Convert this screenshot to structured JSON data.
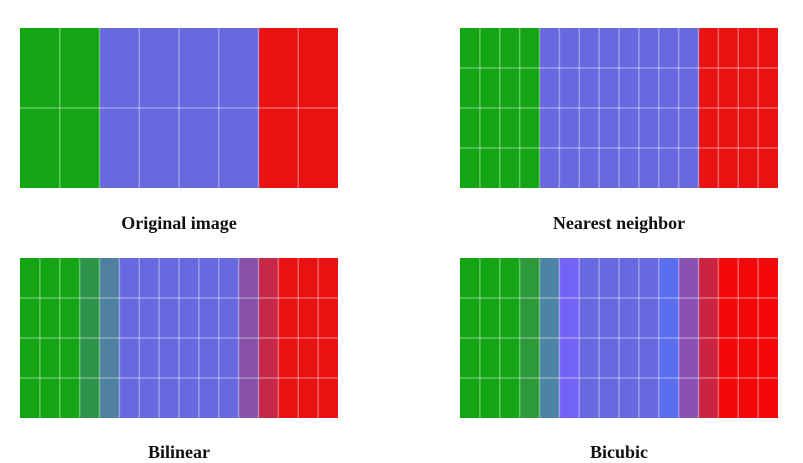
{
  "panels": [
    {
      "caption": "Original image",
      "columns": [
        {
          "color": "#14a514",
          "width": 2
        },
        {
          "color": "#6868e0",
          "width": 4
        },
        {
          "color": "#e81212",
          "width": 2
        }
      ],
      "grid_cols": 8,
      "grid_rows": 2
    },
    {
      "caption": "Nearest neighbor",
      "columns": [
        {
          "color": "#14a514",
          "width": 4
        },
        {
          "color": "#6868e0",
          "width": 8
        },
        {
          "color": "#e81212",
          "width": 4
        }
      ],
      "grid_cols": 16,
      "grid_rows": 4
    },
    {
      "caption": "Bilinear",
      "columns": [
        {
          "color": "#14a514",
          "width": 3
        },
        {
          "color": "#2e944a",
          "width": 1
        },
        {
          "color": "#4f80a0",
          "width": 1
        },
        {
          "color": "#6868e0",
          "width": 6
        },
        {
          "color": "#8850a8",
          "width": 1
        },
        {
          "color": "#c82848",
          "width": 1
        },
        {
          "color": "#e81212",
          "width": 3
        }
      ],
      "grid_cols": 16,
      "grid_rows": 4
    },
    {
      "caption": "Bicubic",
      "columns": [
        {
          "color": "#14a514",
          "width": 3
        },
        {
          "color": "#2d9a3a",
          "width": 1
        },
        {
          "color": "#4d84a6",
          "width": 1
        },
        {
          "color": "#7464f6",
          "width": 1
        },
        {
          "color": "#6868e0",
          "width": 4
        },
        {
          "color": "#5a6eee",
          "width": 1
        },
        {
          "color": "#8c50b4",
          "width": 1
        },
        {
          "color": "#cc2440",
          "width": 1
        },
        {
          "color": "#f20808",
          "width": 3
        }
      ],
      "grid_cols": 16,
      "grid_rows": 4
    }
  ]
}
